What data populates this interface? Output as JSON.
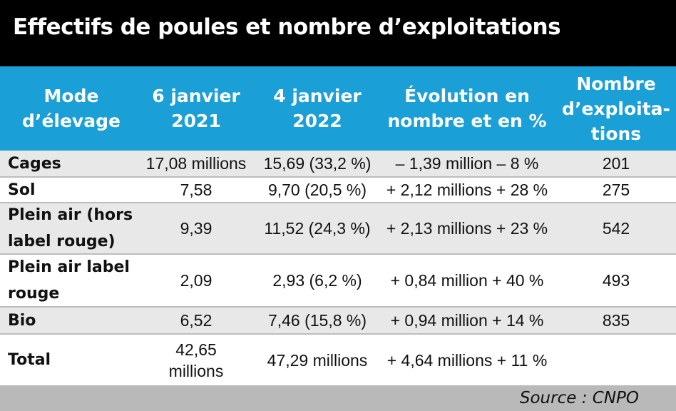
{
  "title": "Effectifs de poules et nombre d’exploitations",
  "source": "Source : CNPO",
  "chart_data": {
    "type": "table",
    "columns": [
      "Mode\nd’élevage",
      "6 janvier\n2021",
      "4 janvier\n2022",
      "Évolution en\nnombre et en %",
      "Nombre\nd’exploita-\ntions"
    ],
    "rows": [
      [
        "Cages",
        "17,08 millions",
        "15,69 (33,2 %)",
        "– 1,39 million – 8 %",
        "201"
      ],
      [
        "Sol",
        "7,58",
        "9,70 (20,5 %)",
        "+ 2,12 millions + 28 %",
        "275"
      ],
      [
        "Plein air (hors label rouge)",
        "9,39",
        "11,52 (24,3 %)",
        "+ 2,13 millions + 23 %",
        "542"
      ],
      [
        "Plein air label rouge",
        "2,09",
        "2,93 (6,2 %)",
        "+ 0,84 million + 40 %",
        "493"
      ],
      [
        "Bio",
        "6,52",
        "7,46 (15,8 %)",
        "+ 0,94 million + 14 %",
        "835"
      ],
      [
        "Total",
        "42,65 millions",
        "47,29 millions",
        "+ 4,64 millions + 11 %",
        ""
      ]
    ]
  },
  "colors": {
    "title_bg": "#000000",
    "header_bg": "#1a9fd6",
    "row_shade": "#e8e8e8",
    "source_bg": "#b9b9b9"
  }
}
